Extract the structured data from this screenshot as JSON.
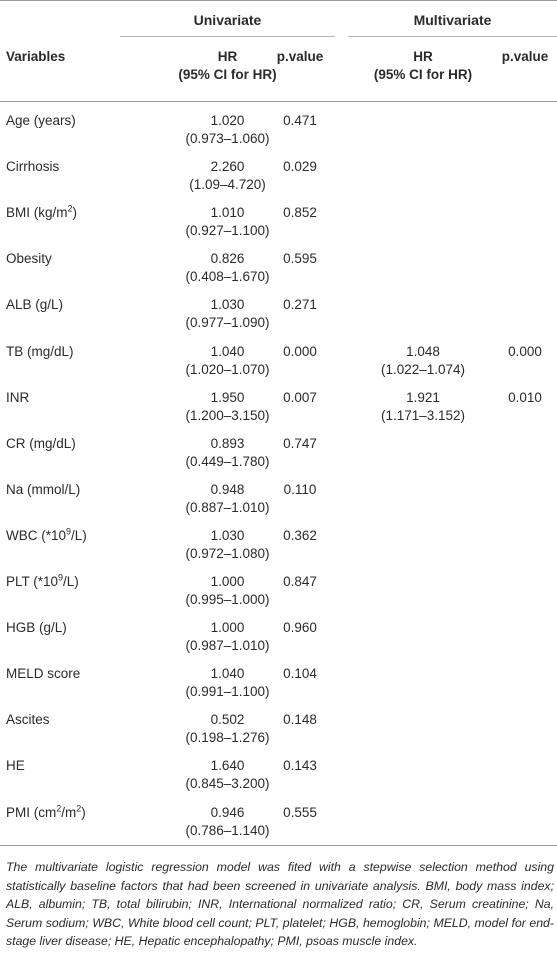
{
  "header": {
    "univariate": "Univariate",
    "multivariate": "Multivariate",
    "variables": "Variables",
    "hr": "HR",
    "ci": "(95% CI for HR)",
    "pvalue": "p.value"
  },
  "rows": [
    {
      "var": "Age (years)",
      "hr1": "1.020",
      "ci1": "(0.973–1.060)",
      "p1": "0.471",
      "hr2": "",
      "ci2": "",
      "p2": ""
    },
    {
      "var": "Cirrhosis",
      "hr1": "2.260",
      "ci1": "(1.09–4.720)",
      "p1": "0.029",
      "hr2": "",
      "ci2": "",
      "p2": ""
    },
    {
      "var": "BMI (kg/m",
      "sup": "2",
      "after": ")",
      "hr1": "1.010",
      "ci1": "(0.927–1.100)",
      "p1": "0.852",
      "hr2": "",
      "ci2": "",
      "p2": ""
    },
    {
      "var": "Obesity",
      "hr1": "0.826",
      "ci1": "(0.408–1.670)",
      "p1": "0.595",
      "hr2": "",
      "ci2": "",
      "p2": ""
    },
    {
      "var": "ALB (g/L)",
      "hr1": "1.030",
      "ci1": "(0.977–1.090)",
      "p1": "0.271",
      "hr2": "",
      "ci2": "",
      "p2": ""
    },
    {
      "var": "TB (mg/dL)",
      "hr1": "1.040",
      "ci1": "(1.020–1.070)",
      "p1": "0.000",
      "hr2": "1.048",
      "ci2": "(1.022–1.074)",
      "p2": "0.000"
    },
    {
      "var": "INR",
      "hr1": "1.950",
      "ci1": "(1.200–3.150)",
      "p1": "0.007",
      "hr2": "1.921",
      "ci2": "(1.171–3.152)",
      "p2": "0.010"
    },
    {
      "var": "CR (mg/dL)",
      "hr1": "0.893",
      "ci1": "(0.449–1.780)",
      "p1": "0.747",
      "hr2": "",
      "ci2": "",
      "p2": ""
    },
    {
      "var": "Na (mmol/L)",
      "hr1": "0.948",
      "ci1": "(0.887–1.010)",
      "p1": "0.110",
      "hr2": "",
      "ci2": "",
      "p2": ""
    },
    {
      "var": "WBC (*10",
      "sup": "9",
      "after": "/L)",
      "hr1": "1.030",
      "ci1": "(0.972–1.080)",
      "p1": "0.362",
      "hr2": "",
      "ci2": "",
      "p2": ""
    },
    {
      "var": "PLT (*10",
      "sup": "9",
      "after": "/L)",
      "hr1": "1.000",
      "ci1": "(0.995–1.000)",
      "p1": "0.847",
      "hr2": "",
      "ci2": "",
      "p2": ""
    },
    {
      "var": "HGB (g/L)",
      "hr1": "1.000",
      "ci1": "(0.987–1.010)",
      "p1": "0.960",
      "hr2": "",
      "ci2": "",
      "p2": ""
    },
    {
      "var": "MELD score",
      "hr1": "1.040",
      "ci1": "(0.991–1.100)",
      "p1": "0.104",
      "hr2": "",
      "ci2": "",
      "p2": ""
    },
    {
      "var": "Ascites",
      "hr1": "0.502",
      "ci1": "(0.198–1.276)",
      "p1": "0.148",
      "hr2": "",
      "ci2": "",
      "p2": ""
    },
    {
      "var": "HE",
      "hr1": "1.640",
      "ci1": "(0.845–3.200)",
      "p1": "0.143",
      "hr2": "",
      "ci2": "",
      "p2": ""
    },
    {
      "var": "PMI (cm",
      "sup": "2",
      "after": "/m",
      "sup2": "2",
      "after2": ")",
      "hr1": "0.946",
      "ci1": "(0.786–1.140)",
      "p1": "0.555",
      "hr2": "",
      "ci2": "",
      "p2": ""
    }
  ],
  "footnote": "The multivariate logistic regression model was fited with a stepwise selection method using statistically baseline factors that had been screened in univariate analysis. BMI, body mass index; ALB, albumin; TB, total bilirubin; INR, International normalized ratio; CR, Serum creatinine; Na, Serum sodium; WBC, White blood cell count; PLT, platelet; HGB, hemoglobin; MELD, model for end-stage liver disease; HE, Hepatic encephalopathy; PMI, psoas muscle index."
}
